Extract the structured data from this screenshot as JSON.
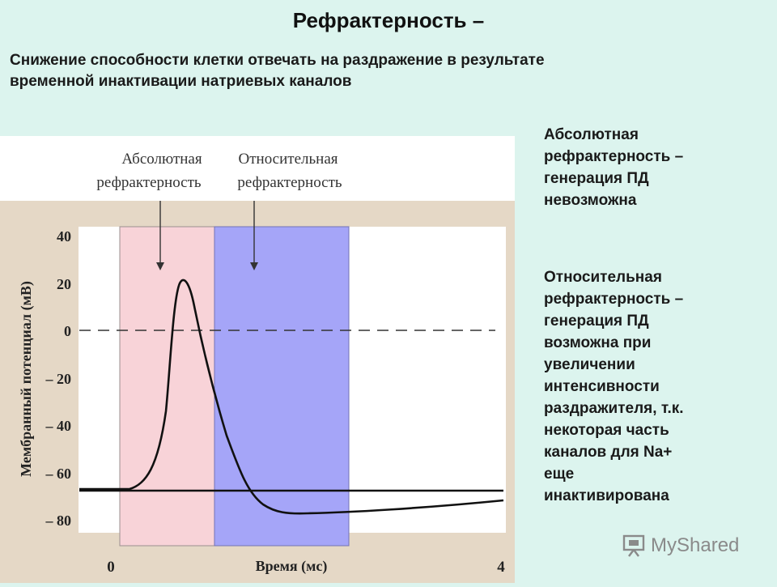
{
  "title": "Рефрактерность –",
  "subtitle_line1": "Снижение способности клетки отвечать на раздражение в результате",
  "subtitle_line2": "временной инактивации натриевых каналов",
  "figure": {
    "label_absolute_line1": "Абсолютная",
    "label_absolute_line2": "рефрактерность",
    "label_relative_line1": "Относительная",
    "label_relative_line2": "рефрактерность",
    "xlabel": "Время (мс)",
    "ylabel": "Мембранный потенциал (мВ)",
    "x_ticks": [
      "0",
      "4"
    ],
    "y_ticks": [
      "40",
      "20",
      "0",
      "– 20",
      "– 40",
      "– 60",
      "– 80"
    ],
    "colors": {
      "absolute_band": "#f8d3d8",
      "relative_band": "#a5a5f8",
      "frame": "#e5d8c6",
      "curve": "#111111"
    }
  },
  "side": {
    "absolute_lines": [
      "Абсолютная",
      "рефрактерность –",
      "генерация ПД",
      "невозможна"
    ],
    "relative_lines": [
      "Относительная",
      "рефрактерность –",
      "генерация ПД",
      "возможна при",
      "увеличении",
      "интенсивности",
      "раздражителя, т.к.",
      "некоторая часть",
      "каналов для Na+",
      "еще",
      "инактивирована"
    ]
  },
  "watermark": {
    "text": "MyShared",
    "icon": "presentation-board-icon"
  }
}
